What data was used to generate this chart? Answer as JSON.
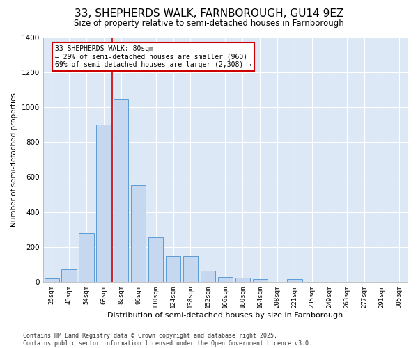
{
  "title1": "33, SHEPHERDS WALK, FARNBOROUGH, GU14 9EZ",
  "title2": "Size of property relative to semi-detached houses in Farnborough",
  "xlabel": "Distribution of semi-detached houses by size in Farnborough",
  "ylabel": "Number of semi-detached properties",
  "bar_categories": [
    "26sqm",
    "40sqm",
    "54sqm",
    "68sqm",
    "82sqm",
    "96sqm",
    "110sqm",
    "124sqm",
    "138sqm",
    "152sqm",
    "166sqm",
    "180sqm",
    "194sqm",
    "208sqm",
    "221sqm",
    "235sqm",
    "249sqm",
    "263sqm",
    "277sqm",
    "291sqm",
    "305sqm"
  ],
  "bar_values": [
    20,
    70,
    280,
    900,
    1047,
    555,
    255,
    145,
    145,
    65,
    28,
    22,
    15,
    0,
    14,
    0,
    0,
    0,
    0,
    0,
    0
  ],
  "bar_color": "#c5d8f0",
  "bar_edge_color": "#5b9bd5",
  "vline_color": "#cc0000",
  "annotation_title": "33 SHEPHERDS WALK: 80sqm",
  "annotation_line2": "← 29% of semi-detached houses are smaller (960)",
  "annotation_line3": "69% of semi-detached houses are larger (2,308) →",
  "annotation_box_color": "#cc0000",
  "ylim": [
    0,
    1400
  ],
  "yticks": [
    0,
    200,
    400,
    600,
    800,
    1000,
    1200,
    1400
  ],
  "background_color": "#dce8f5",
  "footer_line1": "Contains HM Land Registry data © Crown copyright and database right 2025.",
  "footer_line2": "Contains public sector information licensed under the Open Government Licence v3.0.",
  "title1_fontsize": 11,
  "title2_fontsize": 8.5,
  "annotation_fontsize": 7,
  "footer_fontsize": 6,
  "ylabel_fontsize": 7.5,
  "xlabel_fontsize": 8,
  "ytick_fontsize": 7.5,
  "xtick_fontsize": 6.5
}
